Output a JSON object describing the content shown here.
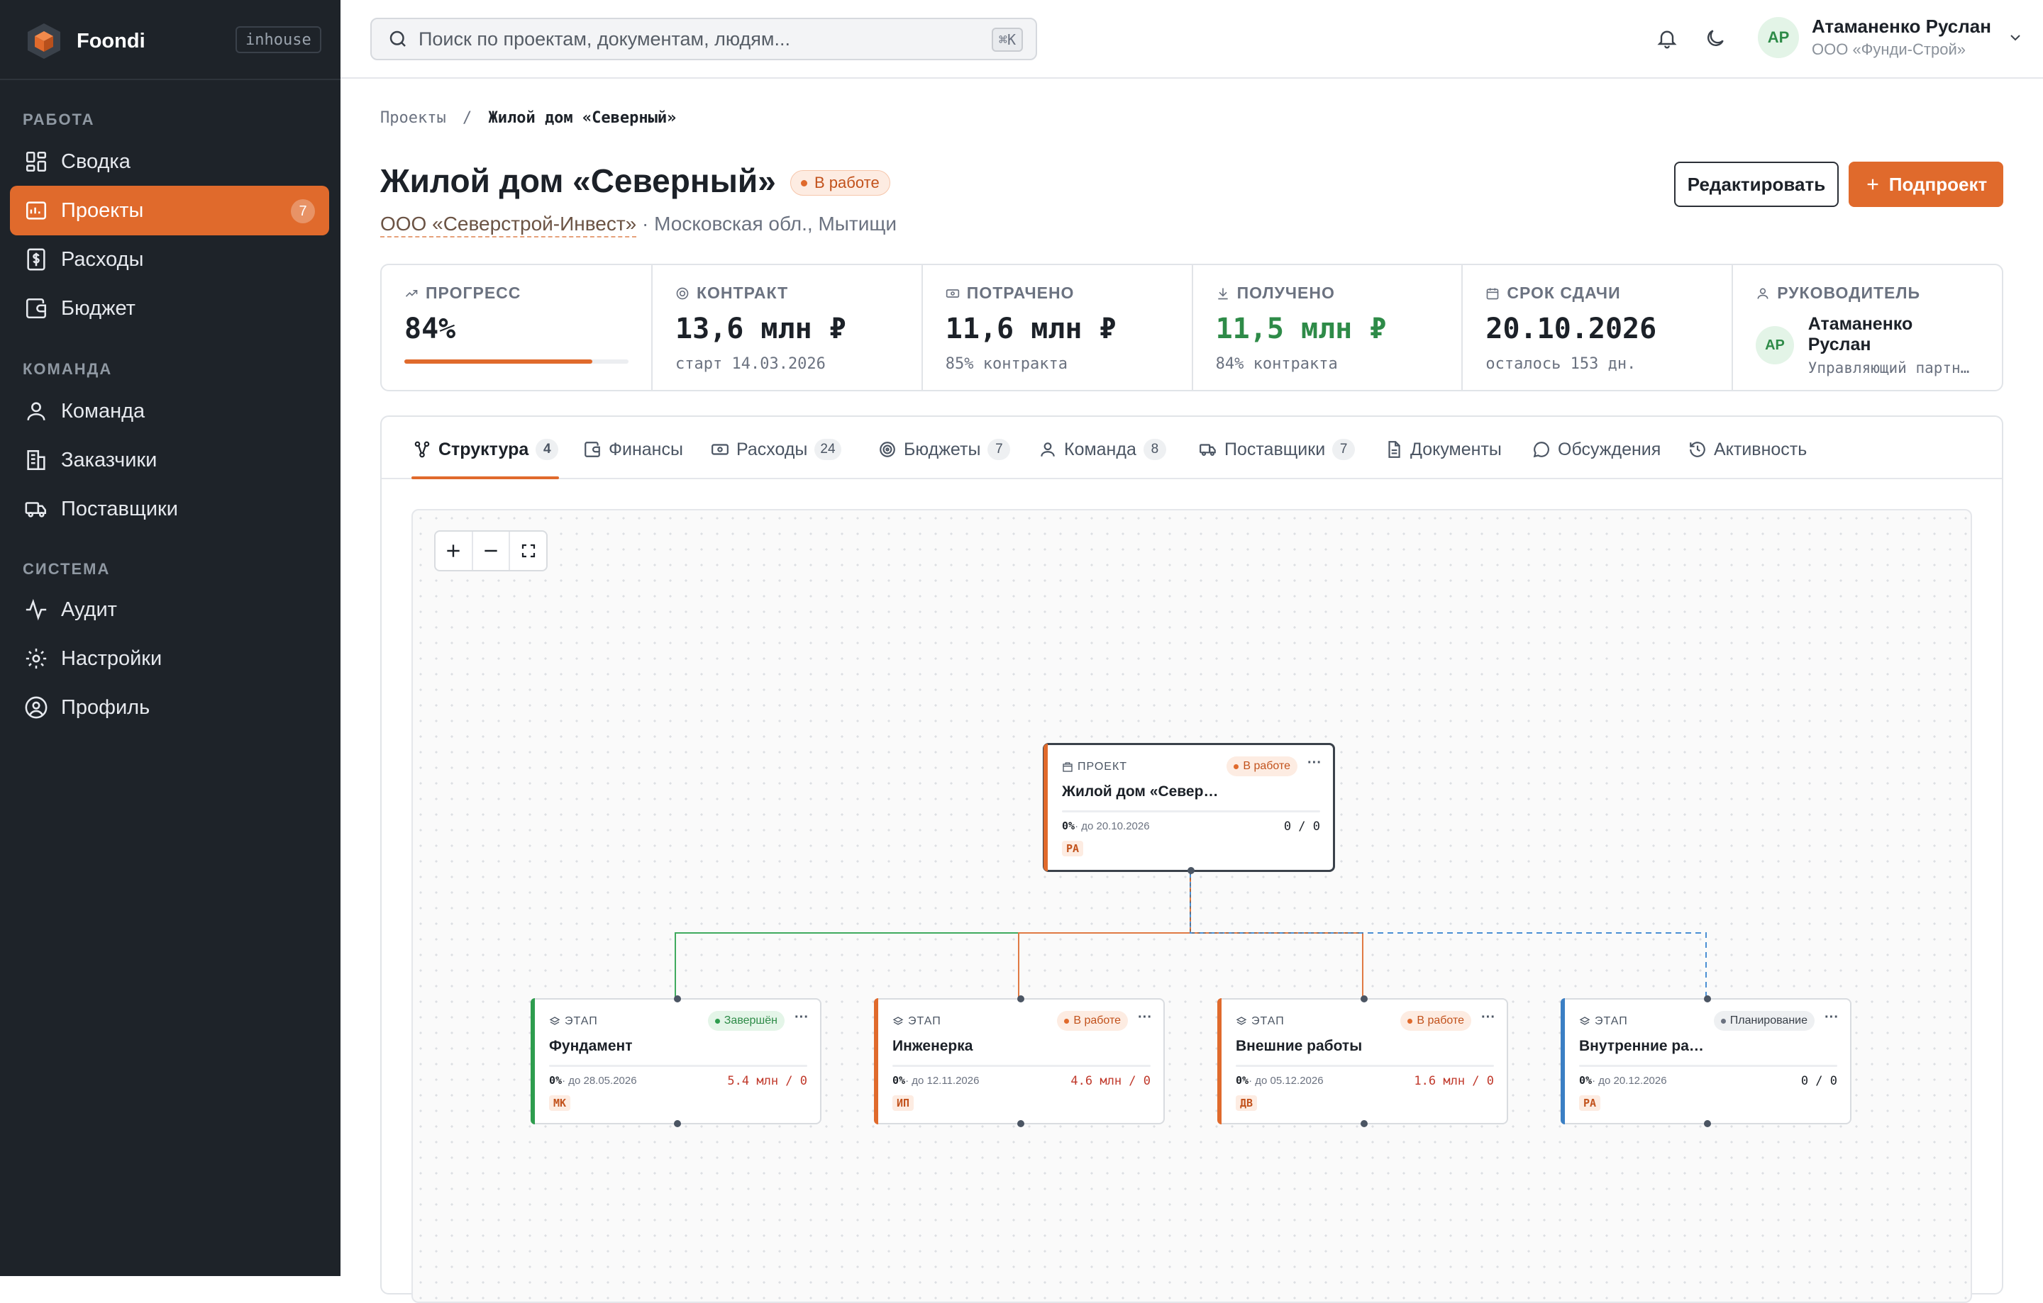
{
  "sidebar": {
    "brand": "Foondi",
    "env_badge": "inhouse",
    "sections": [
      {
        "title": "РАБОТА",
        "items": [
          {
            "label": "Сводка",
            "icon": "dashboard-icon"
          },
          {
            "label": "Проекты",
            "icon": "projects-icon",
            "badge": "7",
            "active": true
          },
          {
            "label": "Расходы",
            "icon": "expenses-icon"
          },
          {
            "label": "Бюджет",
            "icon": "wallet-icon"
          }
        ]
      },
      {
        "title": "КОМАНДА",
        "items": [
          {
            "label": "Команда",
            "icon": "user-icon"
          },
          {
            "label": "Заказчики",
            "icon": "building-icon"
          },
          {
            "label": "Поставщики",
            "icon": "truck-icon"
          }
        ]
      },
      {
        "title": "СИСТЕМА",
        "items": [
          {
            "label": "Аудит",
            "icon": "activity-icon"
          },
          {
            "label": "Настройки",
            "icon": "gear-icon"
          },
          {
            "label": "Профиль",
            "icon": "profile-icon"
          }
        ]
      }
    ]
  },
  "topbar": {
    "search_placeholder": "Поиск по проектам, документам, людям...",
    "search_shortcut": "⌘K",
    "user": {
      "initials": "АР",
      "name": "Атаманенко Руслан",
      "org": "ООО «Фунди-Строй»"
    }
  },
  "breadcrumb": {
    "parent": "Проекты",
    "separator": "/",
    "current": "Жилой дом «Северный»"
  },
  "project": {
    "title": "Жилой дом «Северный»",
    "status": "В работе",
    "client": "ООО «Северстрой-Инвест»",
    "location": "· Московская обл., Мытищи",
    "edit_label": "Редактировать",
    "subproject_label": "Подпроект"
  },
  "stats": {
    "progress": {
      "label": "ПРОГРЕСС",
      "value": "84%",
      "fraction": 0.84
    },
    "contract": {
      "label": "КОНТРАКТ",
      "value": "13,6 млн ₽",
      "sub": "старт 14.03.2026"
    },
    "spent": {
      "label": "ПОТРАЧЕНО",
      "value": "11,6 млн ₽",
      "sub": "85% контракта"
    },
    "received": {
      "label": "ПОЛУЧЕНО",
      "value": "11,5 млн ₽",
      "sub": "84% контракта"
    },
    "deadline": {
      "label": "СРОК СДАЧИ",
      "value": "20.10.2026",
      "sub": "осталось 153 дн."
    },
    "manager": {
      "label": "РУКОВОДИТЕЛЬ",
      "initials": "АР",
      "name": "Атаманенко Руслан",
      "role": "Управляющий партн…"
    }
  },
  "tabs": [
    {
      "label": "Структура",
      "count": "4",
      "active": true
    },
    {
      "label": "Финансы"
    },
    {
      "label": "Расходы",
      "count": "24"
    },
    {
      "label": "Бюджеты",
      "count": "7"
    },
    {
      "label": "Команда",
      "count": "8"
    },
    {
      "label": "Поставщики",
      "count": "7"
    },
    {
      "label": "Документы"
    },
    {
      "label": "Обсуждения"
    },
    {
      "label": "Активность"
    }
  ],
  "graph": {
    "root": {
      "kind": "ПРОЕКТ",
      "name": "Жилой дом «Север…",
      "status": "В работе",
      "progress": "0%",
      "due": "· до 20.10.2026",
      "money": "0 / 0",
      "initials": "РА"
    },
    "stages": [
      {
        "kind": "ЭТАП",
        "name": "Фундамент",
        "status": "Завершён",
        "status_type": "done",
        "progress": "0%",
        "due": "· до 28.05.2026",
        "money": "5.4 млн / 0",
        "initials": "МК",
        "color": "#2e9d4e"
      },
      {
        "kind": "ЭТАП",
        "name": "Инженерка",
        "status": "В работе",
        "status_type": "work",
        "progress": "0%",
        "due": "· до 12.11.2026",
        "money": "4.6 млн / 0",
        "initials": "ИП",
        "color": "#e06a2c"
      },
      {
        "kind": "ЭТАП",
        "name": "Внешние работы",
        "status": "В работе",
        "status_type": "work",
        "progress": "0%",
        "due": "· до 05.12.2026",
        "money": "1.6 млн / 0",
        "initials": "ДВ",
        "color": "#e06a2c"
      },
      {
        "kind": "ЭТАП",
        "name": "Внутренние ра…",
        "status": "Планирование",
        "status_type": "plan",
        "progress": "0%",
        "due": "· до 20.12.2026",
        "money": "0 / 0",
        "initials": "РА",
        "color": "#3b7fc4"
      }
    ]
  },
  "colors": {
    "accent": "#e06a2c",
    "sidebar": "#1e2329",
    "success": "#2e8b48",
    "plan": "#3b7fc4"
  }
}
